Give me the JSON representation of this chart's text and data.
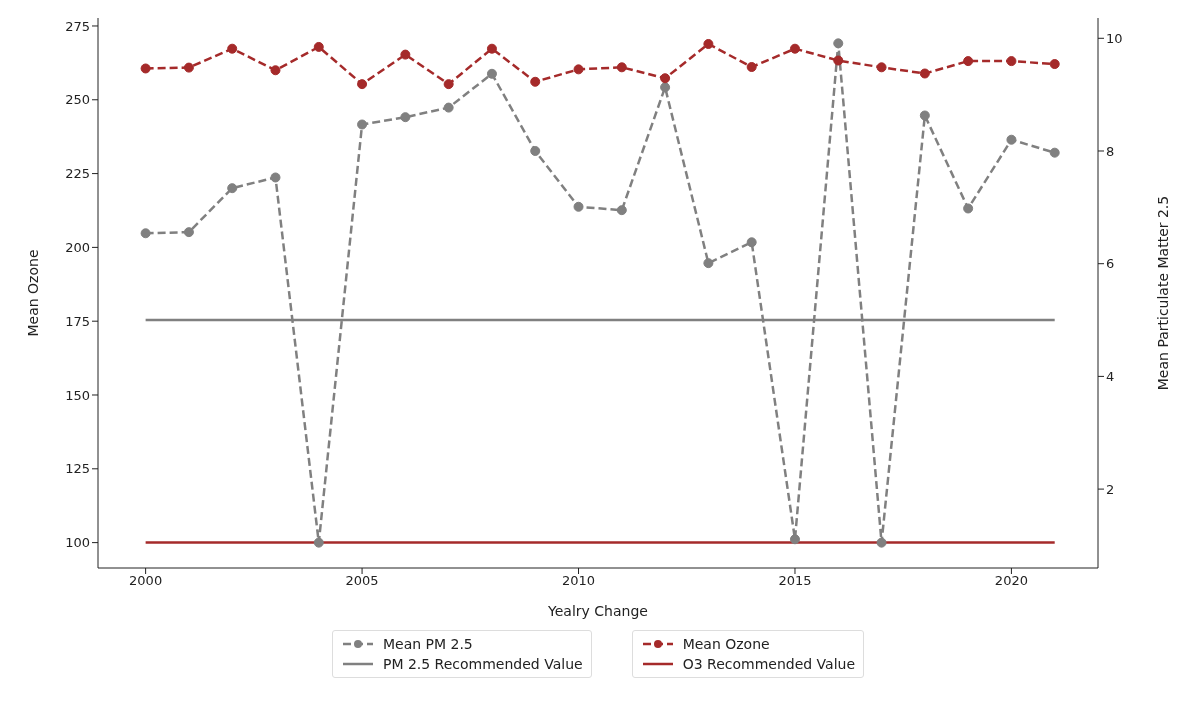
{
  "chart_data": {
    "type": "line",
    "xlabel": "Yealry Change",
    "ylabel": "Mean Ozone",
    "y2label": "Mean Particulate Matter 2.5",
    "x": [
      2000,
      2001,
      2002,
      2003,
      2004,
      2005,
      2006,
      2007,
      2008,
      2009,
      2010,
      2011,
      2012,
      2013,
      2014,
      2015,
      2016,
      2017,
      2018,
      2019,
      2020,
      2021
    ],
    "series": [
      {
        "name": "Mean PM 2.5",
        "color": "#808080",
        "axis": "y2",
        "marker": "circle",
        "line_style": "dashed",
        "values": [
          6.54,
          6.56,
          7.34,
          7.53,
          1.05,
          8.47,
          8.6,
          8.77,
          9.37,
          8.0,
          7.01,
          6.95,
          9.13,
          6.01,
          6.38,
          1.11,
          9.91,
          1.05,
          8.63,
          6.98,
          8.2,
          7.97
        ]
      },
      {
        "name": "Mean Ozone",
        "color": "#a52a2a",
        "axis": "y",
        "marker": "circle",
        "line_style": "dashed",
        "values": [
          260.6,
          260.9,
          267.3,
          260.0,
          267.9,
          255.3,
          265.3,
          255.3,
          267.3,
          256.1,
          260.3,
          261.0,
          257.3,
          268.9,
          261.1,
          267.3,
          263.3,
          261.0,
          258.9,
          263.1,
          263.1,
          262.1
        ]
      }
    ],
    "ref_lines": [
      {
        "axis": "y2",
        "value": 5,
        "label": "PM 2.5 Recommended Value",
        "color": "#808080",
        "line_style": "solid"
      },
      {
        "axis": "y",
        "value": 100,
        "label": "O3 Recommended Value",
        "color": "#a52a2a",
        "line_style": "solid"
      }
    ],
    "xlim": [
      1998.9,
      2022.0
    ],
    "xticks": [
      2000,
      2005,
      2010,
      2015,
      2020
    ],
    "ylim": [
      91.4,
      277.7
    ],
    "yticks": [
      100,
      125,
      150,
      175,
      200,
      225,
      250,
      275
    ],
    "y2lim": [
      0.6,
      10.36
    ],
    "y2ticks": [
      2,
      4,
      6,
      8,
      10
    ],
    "grid": false,
    "legend": "bottom"
  }
}
